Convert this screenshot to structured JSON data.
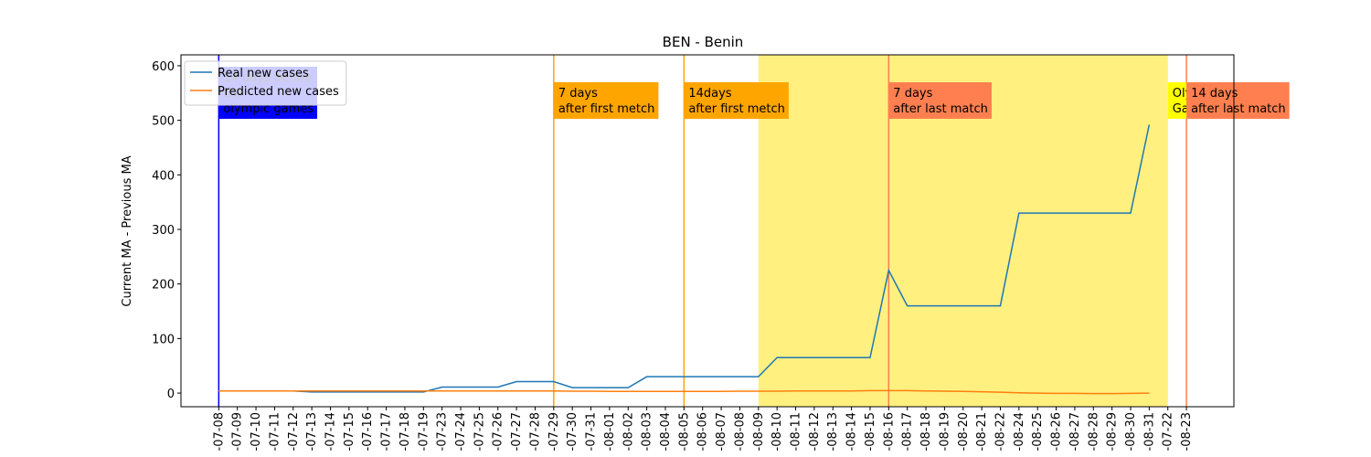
{
  "chart_data": {
    "type": "line",
    "title": "BEN - Benin",
    "ylabel": "Current MA - Previous MA",
    "categories": [
      "-07-08",
      "-07-09",
      "-07-10",
      "-07-11",
      "-07-12",
      "-07-13",
      "-07-14",
      "-07-15",
      "-07-16",
      "-07-17",
      "-07-18",
      "-07-19",
      "-07-23",
      "-07-24",
      "-07-25",
      "-07-26",
      "-07-27",
      "-07-28",
      "-07-29",
      "-07-30",
      "-07-31",
      "-08-01",
      "-08-02",
      "-08-03",
      "-08-04",
      "-08-05",
      "-08-06",
      "-08-07",
      "-08-08",
      "-08-09",
      "-08-10",
      "-08-11",
      "-08-12",
      "-08-13",
      "-08-14",
      "-08-15",
      "-08-16",
      "-08-17",
      "-08-18",
      "-08-19",
      "-08-20",
      "-08-21",
      "-08-22",
      "-08-24",
      "-08-25",
      "-08-26",
      "-08-27",
      "-08-28",
      "-08-29",
      "-08-30",
      "-08-31",
      "-07-22",
      "-08-23"
    ],
    "series": [
      {
        "name": "Real new cases",
        "color": "#1f77b4",
        "values": [
          4,
          4,
          4,
          4,
          4,
          2,
          2,
          2,
          2,
          2,
          2,
          2,
          11,
          11,
          11,
          11,
          21,
          21,
          21,
          10,
          10,
          10,
          10,
          30,
          30,
          30,
          30,
          30,
          30,
          30,
          65,
          65,
          65,
          65,
          65,
          65,
          225,
          160,
          160,
          160,
          160,
          160,
          160,
          330,
          330,
          330,
          330,
          330,
          330,
          330,
          492,
          null,
          null
        ]
      },
      {
        "name": "Predicted new cases",
        "color": "#ff7f0e",
        "values": [
          4,
          4,
          4,
          4,
          4,
          4,
          4,
          4,
          4,
          4,
          4,
          4,
          4,
          4,
          4,
          4,
          4,
          4,
          4,
          3.5,
          3.5,
          3,
          3,
          3,
          3,
          3,
          3,
          3,
          3.5,
          3.5,
          3.5,
          4,
          4,
          4,
          4,
          4.5,
          4.5,
          4.5,
          4,
          3.5,
          3,
          2.5,
          1.5,
          0.5,
          0,
          -0.5,
          -0.5,
          -1,
          -1,
          -0.5,
          0,
          null,
          null
        ]
      }
    ],
    "ylim": [
      -25,
      620
    ],
    "yticks": [
      0,
      100,
      200,
      300,
      400,
      500,
      600
    ],
    "legend": "upper left",
    "span": {
      "from": "-08-09",
      "to": "-07-22",
      "color": "#fff080"
    },
    "annotations": [
      {
        "x": "-07-08",
        "color": "blue",
        "text_color": "white",
        "lines": [
          "14 days before",
          "the",
          "olympic games"
        ]
      },
      {
        "x": "-07-29",
        "color": "orange",
        "text_color": "black",
        "lines": [
          "7 days",
          "after first metch"
        ]
      },
      {
        "x": "-08-05",
        "color": "orange",
        "text_color": "black",
        "lines": [
          "14days",
          "after first metch"
        ]
      },
      {
        "x": "-08-16",
        "color": "#ff7f50",
        "text_color": "black",
        "lines": [
          "7 days",
          "after last match"
        ]
      },
      {
        "x": "-07-22",
        "color": "yellow",
        "text_color": "black",
        "no_line": true,
        "lines": [
          "Olympic",
          "Games"
        ]
      },
      {
        "x": "-08-23",
        "color": "#ff7f50",
        "text_color": "black",
        "lines": [
          "14 days",
          "after last match"
        ]
      }
    ]
  }
}
